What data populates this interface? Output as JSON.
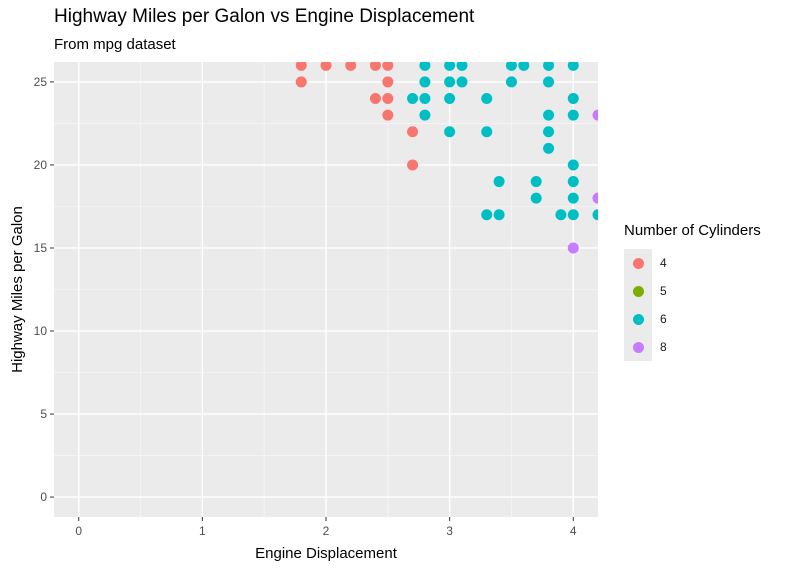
{
  "chart_data": {
    "type": "scatter",
    "title": "Highway Miles per Galon vs Engine Displacement",
    "subtitle": "From mpg dataset",
    "xlabel": "Engine Displacement",
    "ylabel": "Highway Miles per Galon",
    "xlim": [
      -0.2,
      4.2
    ],
    "ylim": [
      -1.2,
      26.2
    ],
    "xticks": [
      0,
      1,
      2,
      3,
      4
    ],
    "yticks": [
      0,
      5,
      10,
      15,
      20,
      25
    ],
    "grid": true,
    "legend": {
      "title": "Number of Cylinders",
      "placement": "right",
      "entries": [
        {
          "label": "4",
          "color": "#F8766D"
        },
        {
          "label": "5",
          "color": "#7CAE00"
        },
        {
          "label": "6",
          "color": "#00BFC4"
        },
        {
          "label": "8",
          "color": "#C77CFF"
        }
      ]
    },
    "series": [
      {
        "name": "4",
        "color": "#F8766D",
        "points": [
          [
            1.8,
            26
          ],
          [
            2.0,
            26
          ],
          [
            2.2,
            26
          ],
          [
            2.4,
            26
          ],
          [
            2.5,
            26
          ],
          [
            1.8,
            25
          ],
          [
            2.5,
            25
          ],
          [
            2.4,
            24
          ],
          [
            2.5,
            24
          ],
          [
            2.5,
            23
          ],
          [
            2.7,
            22
          ],
          [
            2.7,
            20
          ]
        ]
      },
      {
        "name": "5",
        "color": "#7CAE00",
        "points": []
      },
      {
        "name": "6",
        "color": "#00BFC4",
        "points": [
          [
            2.8,
            26
          ],
          [
            3.0,
            26
          ],
          [
            3.1,
            26
          ],
          [
            3.5,
            26
          ],
          [
            3.6,
            26
          ],
          [
            3.8,
            26
          ],
          [
            4.0,
            26
          ],
          [
            2.8,
            25
          ],
          [
            3.0,
            25
          ],
          [
            3.1,
            25
          ],
          [
            3.5,
            25
          ],
          [
            3.8,
            25
          ],
          [
            2.7,
            24
          ],
          [
            2.8,
            24
          ],
          [
            3.0,
            24
          ],
          [
            3.3,
            24
          ],
          [
            4.0,
            24
          ],
          [
            2.8,
            23
          ],
          [
            3.8,
            23
          ],
          [
            4.0,
            23
          ],
          [
            3.0,
            22
          ],
          [
            3.3,
            22
          ],
          [
            3.8,
            22
          ],
          [
            3.8,
            21
          ],
          [
            4.0,
            20
          ],
          [
            3.4,
            19
          ],
          [
            3.7,
            19
          ],
          [
            4.0,
            19
          ],
          [
            3.7,
            18
          ],
          [
            4.0,
            18
          ],
          [
            3.3,
            17
          ],
          [
            3.4,
            17
          ],
          [
            3.9,
            17
          ],
          [
            4.0,
            17
          ],
          [
            4.2,
            17
          ]
        ]
      },
      {
        "name": "8",
        "color": "#C77CFF",
        "points": [
          [
            4.2,
            23
          ],
          [
            4.2,
            18
          ],
          [
            4.0,
            15
          ]
        ]
      }
    ]
  }
}
